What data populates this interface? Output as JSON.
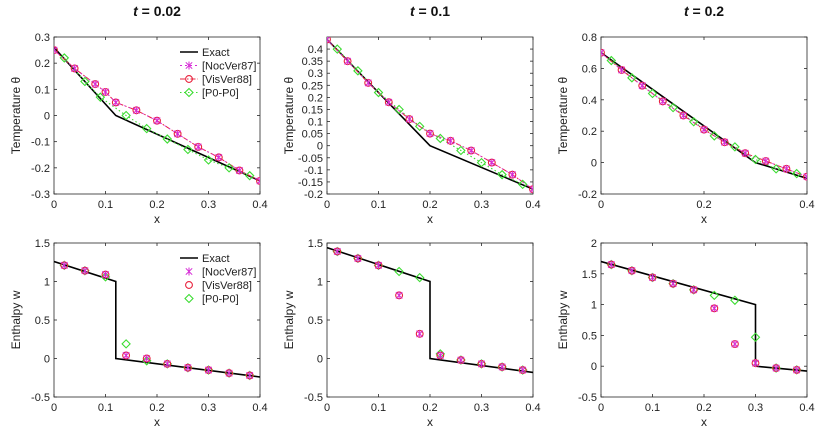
{
  "colors": {
    "exact": "#000000",
    "noc": "#d62ad6",
    "vis": "#e8213c",
    "p0": "#3cdc32"
  },
  "chart_data": [
    {
      "type": "line",
      "title_var": "t",
      "title_val": "= 0.02",
      "xlabel": "x",
      "ylabel": "Temperature θ",
      "xlim": [
        0,
        0.4
      ],
      "ylim": [
        -0.3,
        0.3
      ],
      "xticks": [
        "0",
        "0.1",
        "0.2",
        "0.3",
        "0.4"
      ],
      "yticks": [
        "0.3",
        "0.2",
        "0.1",
        "0",
        "-0.1",
        "-0.2",
        "-0.3"
      ],
      "ytick_values": [
        0.3,
        0.2,
        0.1,
        0,
        -0.1,
        -0.2,
        -0.3
      ],
      "legend": {
        "placement": "top-right",
        "entries": [
          "Exact",
          "[NocVer87]",
          "[VisVer88]",
          "[P0-P0]"
        ]
      },
      "series": [
        {
          "name": "Exact",
          "x": [
            0,
            0.12,
            0.4
          ],
          "y": [
            0.26,
            0.0,
            -0.25
          ]
        },
        {
          "name": "[NocVer87]",
          "x": [
            0,
            0.04,
            0.08,
            0.1,
            0.12,
            0.16,
            0.2,
            0.24,
            0.28,
            0.32,
            0.36,
            0.4
          ],
          "y": [
            0.25,
            0.18,
            0.12,
            0.09,
            0.05,
            0.02,
            -0.02,
            -0.07,
            -0.12,
            -0.16,
            -0.21,
            -0.25
          ]
        },
        {
          "name": "[VisVer88]",
          "x": [
            0,
            0.04,
            0.08,
            0.1,
            0.12,
            0.16,
            0.2,
            0.24,
            0.28,
            0.32,
            0.36,
            0.4
          ],
          "y": [
            0.25,
            0.18,
            0.12,
            0.09,
            0.05,
            0.02,
            -0.02,
            -0.07,
            -0.12,
            -0.16,
            -0.21,
            -0.25
          ]
        },
        {
          "name": "[P0-P0]",
          "x": [
            0.02,
            0.06,
            0.09,
            0.14,
            0.18,
            0.22,
            0.26,
            0.3,
            0.34,
            0.38
          ],
          "y": [
            0.22,
            0.13,
            0.07,
            0.0,
            -0.05,
            -0.09,
            -0.13,
            -0.17,
            -0.2,
            -0.23
          ]
        }
      ]
    },
    {
      "type": "line",
      "title_var": "t",
      "title_val": "= 0.1",
      "xlabel": "x",
      "ylabel": "Temperature θ",
      "xlim": [
        0,
        0.4
      ],
      "ylim": [
        -0.2,
        0.45
      ],
      "xticks": [
        "0",
        "0.1",
        "0.2",
        "0.3",
        "0.4"
      ],
      "yticks": [
        "0.4",
        "0.35",
        "0.3",
        "0.25",
        "0.2",
        "0.15",
        "0.1",
        "0.05",
        "0",
        "-0.05",
        "-0.1",
        "-0.15",
        "-0.2"
      ],
      "ytick_values": [
        0.4,
        0.35,
        0.3,
        0.25,
        0.2,
        0.15,
        0.1,
        0.05,
        0,
        -0.05,
        -0.1,
        -0.15,
        -0.2
      ],
      "series": [
        {
          "name": "Exact",
          "x": [
            0,
            0.2,
            0.4
          ],
          "y": [
            0.44,
            0.0,
            -0.18
          ]
        },
        {
          "name": "[NocVer87]",
          "x": [
            0,
            0.04,
            0.08,
            0.12,
            0.16,
            0.2,
            0.24,
            0.28,
            0.32,
            0.36,
            0.4
          ],
          "y": [
            0.44,
            0.35,
            0.26,
            0.18,
            0.11,
            0.05,
            0.02,
            -0.02,
            -0.07,
            -0.12,
            -0.18
          ]
        },
        {
          "name": "[VisVer88]",
          "x": [
            0,
            0.04,
            0.08,
            0.12,
            0.16,
            0.2,
            0.24,
            0.28,
            0.32,
            0.36,
            0.4
          ],
          "y": [
            0.44,
            0.35,
            0.26,
            0.18,
            0.11,
            0.05,
            0.02,
            -0.02,
            -0.07,
            -0.12,
            -0.18
          ]
        },
        {
          "name": "[P0-P0]",
          "x": [
            0.02,
            0.06,
            0.1,
            0.14,
            0.18,
            0.22,
            0.26,
            0.3,
            0.34,
            0.38
          ],
          "y": [
            0.4,
            0.31,
            0.22,
            0.15,
            0.08,
            0.03,
            -0.02,
            -0.07,
            -0.12,
            -0.16
          ]
        }
      ]
    },
    {
      "type": "line",
      "title_var": "t",
      "title_val": "= 0.2",
      "xlabel": "x",
      "ylabel": "Temperature θ",
      "xlim": [
        0,
        0.4
      ],
      "ylim": [
        -0.2,
        0.8
      ],
      "xticks": [
        "0",
        "0.2",
        "0.4"
      ],
      "yticks": [
        "0.8",
        "0.6",
        "0.4",
        "0.2",
        "0",
        "-0.2"
      ],
      "ytick_values": [
        0.8,
        0.6,
        0.4,
        0.2,
        0,
        -0.2
      ],
      "series": [
        {
          "name": "Exact",
          "x": [
            0,
            0.3,
            0.4
          ],
          "y": [
            0.7,
            0.0,
            -0.1
          ]
        },
        {
          "name": "[NocVer87]",
          "x": [
            0,
            0.04,
            0.08,
            0.12,
            0.16,
            0.2,
            0.24,
            0.28,
            0.32,
            0.36,
            0.4
          ],
          "y": [
            0.7,
            0.59,
            0.49,
            0.39,
            0.3,
            0.21,
            0.13,
            0.06,
            0.01,
            -0.04,
            -0.09
          ]
        },
        {
          "name": "[VisVer88]",
          "x": [
            0,
            0.04,
            0.08,
            0.12,
            0.16,
            0.2,
            0.24,
            0.28,
            0.32,
            0.36,
            0.4
          ],
          "y": [
            0.7,
            0.59,
            0.49,
            0.39,
            0.3,
            0.21,
            0.13,
            0.06,
            0.01,
            -0.04,
            -0.09
          ]
        },
        {
          "name": "[P0-P0]",
          "x": [
            0.02,
            0.06,
            0.1,
            0.14,
            0.18,
            0.22,
            0.26,
            0.3,
            0.34,
            0.38
          ],
          "y": [
            0.65,
            0.54,
            0.44,
            0.35,
            0.26,
            0.17,
            0.1,
            0.02,
            -0.04,
            -0.07
          ]
        }
      ]
    },
    {
      "type": "line",
      "title_var": "",
      "title_val": "",
      "xlabel": "x",
      "ylabel": "Enthalpy w",
      "xlim": [
        0,
        0.4
      ],
      "ylim": [
        -0.5,
        1.5
      ],
      "xticks": [
        "0",
        "0.1",
        "0.2",
        "0.3",
        "0.4"
      ],
      "yticks": [
        "1.5",
        "1",
        "0.5",
        "0",
        "-0.5"
      ],
      "ytick_values": [
        1.5,
        1,
        0.5,
        0,
        -0.5
      ],
      "legend": {
        "placement": "top-right",
        "entries": [
          "Exact",
          "[NocVer87]",
          "[VisVer88]",
          "[P0-P0]"
        ]
      },
      "series": [
        {
          "name": "Exact",
          "x": [
            0,
            0.12,
            0.12,
            0.4
          ],
          "y": [
            1.26,
            1.0,
            0.0,
            -0.24
          ]
        },
        {
          "name": "[NocVer87]",
          "x": [
            0.02,
            0.06,
            0.1,
            0.14,
            0.18,
            0.22,
            0.26,
            0.3,
            0.34,
            0.38
          ],
          "y": [
            1.21,
            1.14,
            1.09,
            0.04,
            0.0,
            -0.07,
            -0.12,
            -0.15,
            -0.19,
            -0.22
          ]
        },
        {
          "name": "[VisVer88]",
          "x": [
            0.02,
            0.06,
            0.1,
            0.14,
            0.18,
            0.22,
            0.26,
            0.3,
            0.34,
            0.38
          ],
          "y": [
            1.21,
            1.14,
            1.09,
            0.04,
            0.0,
            -0.07,
            -0.12,
            -0.15,
            -0.19,
            -0.22
          ]
        },
        {
          "name": "[P0-P0]",
          "x": [
            0.02,
            0.06,
            0.1,
            0.14,
            0.18,
            0.22,
            0.26,
            0.3,
            0.34,
            0.38
          ],
          "y": [
            1.21,
            1.14,
            1.06,
            0.19,
            -0.03,
            -0.07,
            -0.12,
            -0.15,
            -0.19,
            -0.22
          ]
        }
      ]
    },
    {
      "type": "line",
      "title_var": "",
      "title_val": "",
      "xlabel": "x",
      "ylabel": "Enthalpy w",
      "xlim": [
        0,
        0.4
      ],
      "ylim": [
        -0.5,
        1.5
      ],
      "xticks": [
        "0",
        "0.1",
        "0.2",
        "0.3",
        "0.4"
      ],
      "yticks": [
        "1.5",
        "1",
        "0.5",
        "0",
        "-0.5"
      ],
      "ytick_values": [
        1.5,
        1,
        0.5,
        0,
        -0.5
      ],
      "series": [
        {
          "name": "Exact",
          "x": [
            0,
            0.2,
            0.2,
            0.4
          ],
          "y": [
            1.44,
            1.0,
            0.0,
            -0.18
          ]
        },
        {
          "name": "[NocVer87]",
          "x": [
            0.02,
            0.06,
            0.1,
            0.14,
            0.18,
            0.22,
            0.26,
            0.3,
            0.34,
            0.38
          ],
          "y": [
            1.39,
            1.3,
            1.21,
            0.82,
            0.32,
            0.04,
            -0.02,
            -0.07,
            -0.11,
            -0.15
          ]
        },
        {
          "name": "[VisVer88]",
          "x": [
            0.02,
            0.06,
            0.1,
            0.14,
            0.18,
            0.22,
            0.26,
            0.3,
            0.34,
            0.38
          ],
          "y": [
            1.39,
            1.3,
            1.21,
            0.82,
            0.32,
            0.04,
            -0.02,
            -0.07,
            -0.11,
            -0.15
          ]
        },
        {
          "name": "[P0-P0]",
          "x": [
            0.02,
            0.06,
            0.1,
            0.14,
            0.18,
            0.22,
            0.26,
            0.3,
            0.34,
            0.38
          ],
          "y": [
            1.39,
            1.3,
            1.21,
            1.13,
            1.05,
            0.06,
            -0.02,
            -0.07,
            -0.11,
            -0.15
          ]
        }
      ]
    },
    {
      "type": "line",
      "title_var": "",
      "title_val": "",
      "xlabel": "x",
      "ylabel": "Enthalpy w",
      "xlim": [
        0,
        0.4
      ],
      "ylim": [
        -0.5,
        2
      ],
      "xticks": [
        "0",
        "0.1",
        "0.2",
        "0.3",
        "0.4"
      ],
      "yticks": [
        "2",
        "1.5",
        "1",
        "0.5",
        "0",
        "-0.5"
      ],
      "ytick_values": [
        2,
        1.5,
        1,
        0.5,
        0,
        -0.5
      ],
      "series": [
        {
          "name": "Exact",
          "x": [
            0,
            0.3,
            0.3,
            0.4
          ],
          "y": [
            1.7,
            1.0,
            0.0,
            -0.08
          ]
        },
        {
          "name": "[NocVer87]",
          "x": [
            0.02,
            0.06,
            0.1,
            0.14,
            0.18,
            0.22,
            0.26,
            0.3,
            0.34,
            0.38
          ],
          "y": [
            1.65,
            1.55,
            1.44,
            1.34,
            1.24,
            0.94,
            0.36,
            0.05,
            -0.03,
            -0.06
          ]
        },
        {
          "name": "[VisVer88]",
          "x": [
            0.02,
            0.06,
            0.1,
            0.14,
            0.18,
            0.22,
            0.26,
            0.3,
            0.34,
            0.38
          ],
          "y": [
            1.65,
            1.55,
            1.44,
            1.34,
            1.24,
            0.94,
            0.36,
            0.05,
            -0.03,
            -0.06
          ]
        },
        {
          "name": "[P0-P0]",
          "x": [
            0.02,
            0.06,
            0.1,
            0.14,
            0.18,
            0.22,
            0.26,
            0.3,
            0.34,
            0.38
          ],
          "y": [
            1.65,
            1.55,
            1.44,
            1.34,
            1.24,
            1.15,
            1.07,
            0.47,
            -0.03,
            -0.06
          ]
        }
      ]
    }
  ]
}
